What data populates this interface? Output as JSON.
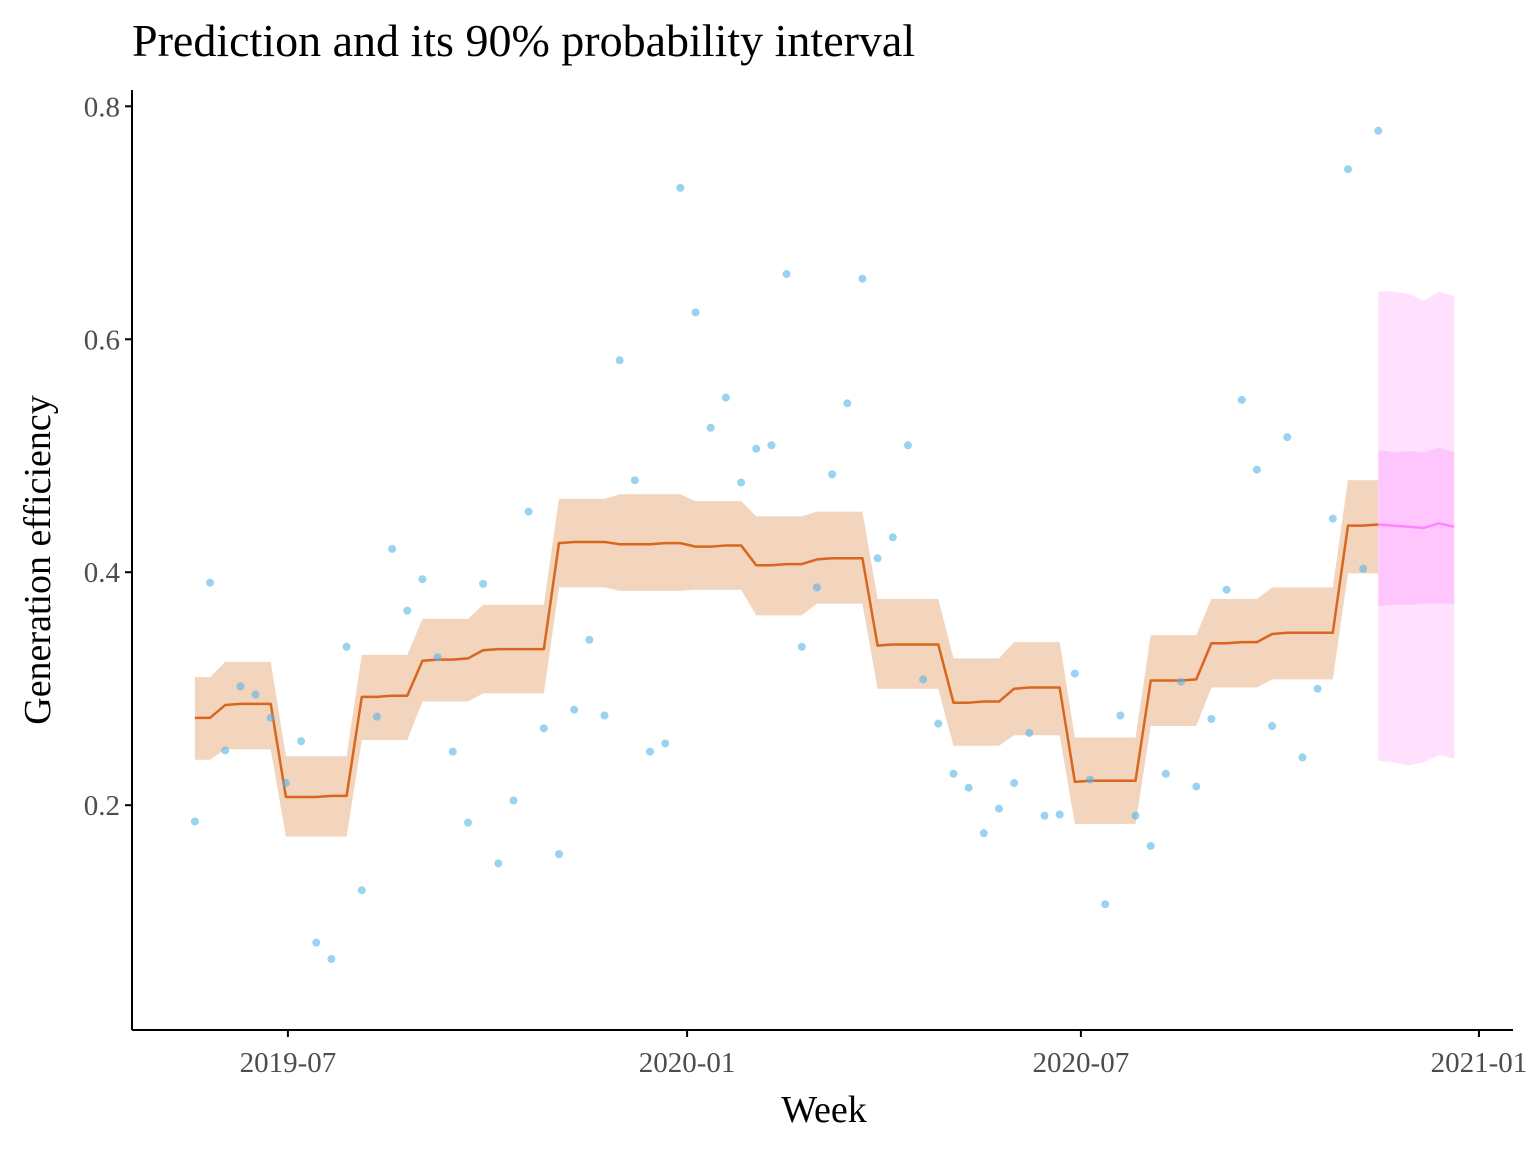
{
  "chart_data": {
    "type": "line",
    "title": "Prediction and its 90% probability interval",
    "x_label": "Week",
    "y_label": "Generation efficiency",
    "xlim": [
      2019.299,
      2021.043
    ],
    "ylim": [
      0.007,
      0.814
    ],
    "xticks": [
      {
        "value": 2019.4959,
        "label": "2019-07"
      },
      {
        "value": 2020.0,
        "label": "2020-01"
      },
      {
        "value": 2020.4973,
        "label": "2020-07"
      },
      {
        "value": 2021.0,
        "label": "2021-01"
      }
    ],
    "yticks": [
      0.2,
      0.4,
      0.6,
      0.8
    ],
    "x": [
      2019.3784,
      2019.3976,
      2019.4167,
      2019.4359,
      2019.455,
      2019.4742,
      2019.4934,
      2019.5125,
      2019.5317,
      2019.5508,
      2019.57,
      2019.5892,
      2019.6083,
      2019.6275,
      2019.6466,
      2019.6658,
      2019.685,
      2019.7041,
      2019.7233,
      2019.7424,
      2019.7616,
      2019.7808,
      2019.7999,
      2019.8191,
      2019.8382,
      2019.8574,
      2019.8766,
      2019.8957,
      2019.9149,
      2019.934,
      2019.9532,
      2019.9724,
      2019.9915,
      2020.0107,
      2020.0298,
      2020.049,
      2020.0682,
      2020.0873,
      2020.1065,
      2020.1256,
      2020.1448,
      2020.164,
      2020.1831,
      2020.2023,
      2020.2214,
      2020.2406,
      2020.2598,
      2020.2789,
      2020.2981,
      2020.3172,
      2020.3364,
      2020.3556,
      2020.3747,
      2020.3939,
      2020.413,
      2020.4322,
      2020.4514,
      2020.4705,
      2020.4897,
      2020.5088,
      2020.528,
      2020.5472,
      2020.5663,
      2020.5855,
      2020.6046,
      2020.6238,
      2020.643,
      2020.6621,
      2020.6813,
      2020.7004,
      2020.7196,
      2020.7388,
      2020.7579,
      2020.7771,
      2020.7962,
      2020.8154,
      2020.8346,
      2020.8537,
      2020.8729
    ],
    "points": {
      "color": "#56b4e9",
      "values": [
        0.186,
        0.391,
        0.247,
        0.302,
        0.295,
        0.275,
        0.219,
        0.255,
        0.082,
        0.068,
        0.336,
        0.127,
        0.276,
        0.42,
        0.367,
        0.394,
        0.327,
        0.246,
        0.185,
        0.39,
        0.15,
        0.204,
        0.452,
        0.266,
        0.158,
        0.282,
        0.342,
        0.277,
        0.582,
        0.479,
        0.246,
        0.253,
        0.73,
        0.623,
        0.524,
        0.55,
        0.477,
        0.506,
        0.509,
        0.656,
        0.336,
        0.387,
        0.484,
        0.545,
        0.652,
        0.412,
        0.43,
        0.509,
        0.308,
        0.27,
        0.227,
        0.215,
        0.176,
        0.197,
        0.219,
        0.262,
        0.191,
        0.192,
        0.313,
        0.222,
        0.115,
        0.277,
        0.191,
        0.165,
        0.227,
        0.306,
        0.216,
        0.274,
        0.385,
        0.548,
        0.488,
        0.268,
        0.516,
        0.241,
        0.3,
        0.446,
        0.746,
        0.403,
        0.779
      ]
    },
    "prediction": {
      "color": "#d9661f",
      "band_color": "#f3d4bc",
      "values": [
        0.275,
        0.275,
        0.286,
        0.287,
        0.287,
        0.287,
        0.207,
        0.207,
        0.207,
        0.208,
        0.208,
        0.293,
        0.293,
        0.294,
        0.294,
        0.324,
        0.325,
        0.325,
        0.326,
        0.333,
        0.334,
        0.334,
        0.334,
        0.334,
        0.425,
        0.426,
        0.426,
        0.426,
        0.424,
        0.424,
        0.424,
        0.425,
        0.425,
        0.422,
        0.422,
        0.423,
        0.423,
        0.406,
        0.406,
        0.407,
        0.407,
        0.411,
        0.412,
        0.412,
        0.412,
        0.337,
        0.338,
        0.338,
        0.338,
        0.338,
        0.288,
        0.288,
        0.289,
        0.289,
        0.3,
        0.301,
        0.301,
        0.301,
        0.22,
        0.221,
        0.221,
        0.221,
        0.221,
        0.307,
        0.307,
        0.307,
        0.308,
        0.339,
        0.339,
        0.34,
        0.34,
        0.347,
        0.348,
        0.348,
        0.348,
        0.348,
        0.44,
        0.44,
        0.441
      ],
      "lower": [
        0.239,
        0.239,
        0.248,
        0.248,
        0.248,
        0.248,
        0.173,
        0.173,
        0.173,
        0.173,
        0.173,
        0.256,
        0.256,
        0.256,
        0.256,
        0.289,
        0.289,
        0.289,
        0.289,
        0.296,
        0.296,
        0.296,
        0.296,
        0.296,
        0.387,
        0.387,
        0.387,
        0.387,
        0.384,
        0.384,
        0.384,
        0.384,
        0.384,
        0.385,
        0.385,
        0.385,
        0.385,
        0.363,
        0.363,
        0.363,
        0.363,
        0.373,
        0.373,
        0.373,
        0.373,
        0.3,
        0.3,
        0.3,
        0.3,
        0.3,
        0.251,
        0.251,
        0.251,
        0.251,
        0.26,
        0.26,
        0.26,
        0.26,
        0.184,
        0.184,
        0.184,
        0.184,
        0.184,
        0.268,
        0.268,
        0.268,
        0.268,
        0.301,
        0.301,
        0.301,
        0.301,
        0.308,
        0.308,
        0.308,
        0.308,
        0.308,
        0.399,
        0.399,
        0.399
      ],
      "upper": [
        0.31,
        0.31,
        0.323,
        0.323,
        0.323,
        0.323,
        0.242,
        0.242,
        0.242,
        0.242,
        0.242,
        0.329,
        0.329,
        0.329,
        0.329,
        0.36,
        0.36,
        0.36,
        0.36,
        0.372,
        0.372,
        0.372,
        0.372,
        0.372,
        0.463,
        0.463,
        0.463,
        0.463,
        0.467,
        0.467,
        0.467,
        0.467,
        0.467,
        0.461,
        0.461,
        0.461,
        0.461,
        0.448,
        0.448,
        0.448,
        0.448,
        0.452,
        0.452,
        0.452,
        0.452,
        0.377,
        0.377,
        0.377,
        0.377,
        0.377,
        0.326,
        0.326,
        0.326,
        0.326,
        0.34,
        0.34,
        0.34,
        0.34,
        0.258,
        0.258,
        0.258,
        0.258,
        0.258,
        0.346,
        0.346,
        0.346,
        0.346,
        0.377,
        0.377,
        0.377,
        0.377,
        0.387,
        0.387,
        0.387,
        0.387,
        0.387,
        0.479,
        0.479,
        0.479
      ]
    },
    "forecast": {
      "x": [
        2020.8729,
        2020.892,
        2020.9112,
        2020.9304,
        2020.9495,
        2020.9687
      ],
      "color": "#ff85ff",
      "values": [
        0.441,
        0.44,
        0.439,
        0.438,
        0.442,
        0.439
      ],
      "outer_color": "#ffe1fe",
      "outer_lower": [
        0.238,
        0.237,
        0.234,
        0.237,
        0.243,
        0.24
      ],
      "outer_upper": [
        0.641,
        0.641,
        0.639,
        0.633,
        0.641,
        0.637
      ],
      "inner_color": "#ffc6fe",
      "inner_lower": [
        0.371,
        0.372,
        0.372,
        0.373,
        0.373,
        0.373
      ],
      "inner_upper": [
        0.505,
        0.503,
        0.504,
        0.503,
        0.507,
        0.503
      ]
    }
  }
}
